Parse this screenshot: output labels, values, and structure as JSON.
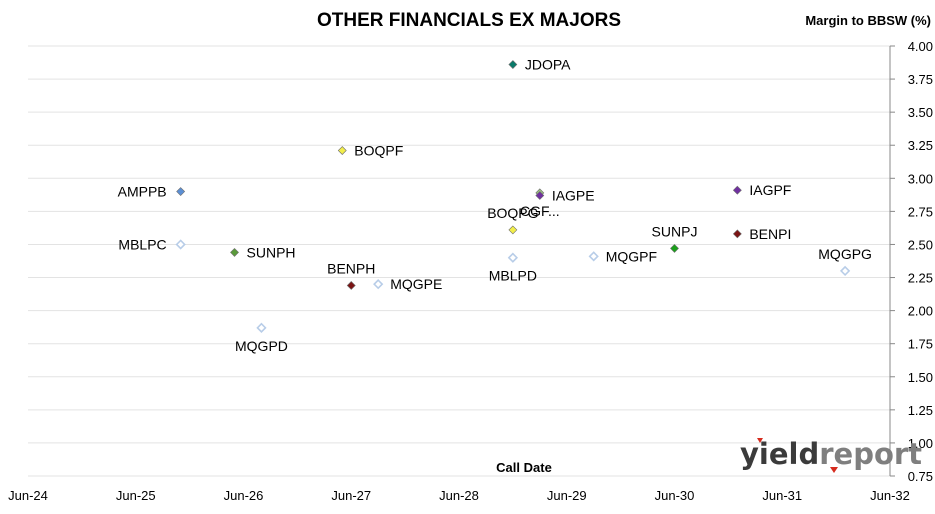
{
  "chart_data": {
    "type": "scatter",
    "title": "OTHER FINANCIALS EX MAJORS",
    "ylabel": "Margin to BBSW (%)",
    "xlabel": "Call Date",
    "x_ticks": [
      "Jun-24",
      "Jun-25",
      "Jun-26",
      "Jun-27",
      "Jun-28",
      "Jun-29",
      "Jun-30",
      "Jun-31",
      "Jun-32"
    ],
    "y_ticks": [
      "0.75",
      "1.00",
      "1.25",
      "1.50",
      "1.75",
      "2.00",
      "2.25",
      "2.50",
      "2.75",
      "3.00",
      "3.25",
      "3.50",
      "3.75",
      "4.00"
    ],
    "xlim": [
      "2024-06",
      "2032-06"
    ],
    "ylim": [
      0.75,
      4.0
    ],
    "grid": "horizontal",
    "y_axis_side": "right",
    "points": [
      {
        "label": "JDOPA",
        "x": "2028-12",
        "y": 3.86,
        "color": "#0a7a6a",
        "filled": true,
        "label_pos": "right"
      },
      {
        "label": "BOQPF",
        "x": "2027-05",
        "y": 3.21,
        "color": "#f2ee4a",
        "filled": true,
        "label_pos": "right"
      },
      {
        "label": "AMPPB",
        "x": "2025-11",
        "y": 2.9,
        "color": "#5b8fd4",
        "filled": true,
        "label_pos": "left"
      },
      {
        "label": "CGF...",
        "x": "2029-03",
        "y": 2.89,
        "color": "#9dc183",
        "filled": true,
        "label_pos": "below"
      },
      {
        "label": "IAGPE",
        "x": "2029-03",
        "y": 2.87,
        "color": "#7030a0",
        "filled": true,
        "label_pos": "right"
      },
      {
        "label": "IAGPF",
        "x": "2031-01",
        "y": 2.91,
        "color": "#7030a0",
        "filled": true,
        "label_pos": "right"
      },
      {
        "label": "BOQPG",
        "x": "2028-12",
        "y": 2.61,
        "color": "#f2ee4a",
        "filled": true,
        "label_pos": "above"
      },
      {
        "label": "BENPI",
        "x": "2031-01",
        "y": 2.58,
        "color": "#7b1414",
        "filled": true,
        "label_pos": "right"
      },
      {
        "label": "SUNPJ",
        "x": "2030-06",
        "y": 2.47,
        "color": "#1aa01a",
        "filled": true,
        "label_pos": "above"
      },
      {
        "label": "MBLPC",
        "x": "2025-11",
        "y": 2.5,
        "color": "#b8cde8",
        "filled": false,
        "label_pos": "left"
      },
      {
        "label": "SUNPH",
        "x": "2026-05",
        "y": 2.44,
        "color": "#5a9a3a",
        "filled": true,
        "label_pos": "right"
      },
      {
        "label": "MBLPD",
        "x": "2028-12",
        "y": 2.4,
        "color": "#b8cde8",
        "filled": false,
        "label_pos": "below"
      },
      {
        "label": "MQGPF",
        "x": "2029-09",
        "y": 2.41,
        "color": "#b8cde8",
        "filled": false,
        "label_pos": "right"
      },
      {
        "label": "MQGPG",
        "x": "2032-01",
        "y": 2.3,
        "color": "#b8cde8",
        "filled": false,
        "label_pos": "above"
      },
      {
        "label": "BENPH",
        "x": "2027-06",
        "y": 2.19,
        "color": "#7b1414",
        "filled": true,
        "label_pos": "above"
      },
      {
        "label": "MQGPE",
        "x": "2027-09",
        "y": 2.2,
        "color": "#b8cde8",
        "filled": false,
        "label_pos": "right"
      },
      {
        "label": "MQGPD",
        "x": "2026-08",
        "y": 1.87,
        "color": "#b8cde8",
        "filled": false,
        "label_pos": "below"
      }
    ]
  },
  "logo": {
    "text_part1": "yield",
    "text_part2": "report",
    "color_part1": "#3b3b3b",
    "color_part2": "#7f7f7f",
    "accent_color": "#d62b1e"
  }
}
